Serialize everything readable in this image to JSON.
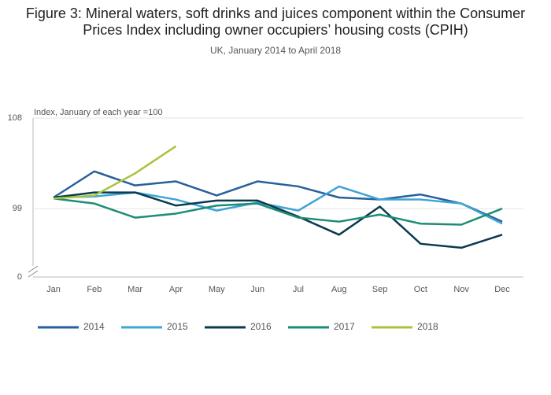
{
  "chart_data": {
    "type": "line",
    "title": "Figure 3: Mineral waters, soft drinks and juices component within the Consumer Prices Index including owner occupiers’ housing costs (CPIH)",
    "subtitle": "UK, January 2014 to April 2018",
    "y_axis_label": "Index, January of each year =100",
    "y_break_label": "0",
    "categories": [
      "Jan",
      "Feb",
      "Mar",
      "Apr",
      "May",
      "Jun",
      "Jul",
      "Aug",
      "Sep",
      "Oct",
      "Nov",
      "Dec"
    ],
    "ylim": [
      92.2,
      108
    ],
    "yticks": [
      99,
      108
    ],
    "grid": true,
    "legend": "bottom",
    "series": [
      {
        "name": "2014",
        "color": "#27609a",
        "values": [
          100.1,
          102.7,
          101.3,
          101.7,
          100.3,
          101.7,
          101.2,
          100.1,
          99.9,
          100.4,
          99.5,
          97.7
        ]
      },
      {
        "name": "2015",
        "color": "#3fa4d5",
        "values": [
          100.1,
          100.2,
          100.6,
          99.9,
          98.8,
          99.6,
          98.8,
          101.2,
          99.9,
          99.9,
          99.5,
          97.5
        ]
      },
      {
        "name": "2016",
        "color": "#0a3a4e",
        "values": [
          100.1,
          100.6,
          100.6,
          99.3,
          99.8,
          99.8,
          98.2,
          96.4,
          99.2,
          95.5,
          95.1,
          96.4
        ]
      },
      {
        "name": "2017",
        "color": "#1e8c74",
        "values": [
          100.0,
          99.5,
          98.1,
          98.5,
          99.3,
          99.5,
          98.1,
          97.7,
          98.4,
          97.5,
          97.4,
          99.0
        ]
      },
      {
        "name": "2018",
        "color": "#a8c43c",
        "values": [
          100.0,
          100.3,
          102.5,
          105.2,
          null,
          null,
          null,
          null,
          null,
          null,
          null,
          null
        ]
      }
    ]
  }
}
